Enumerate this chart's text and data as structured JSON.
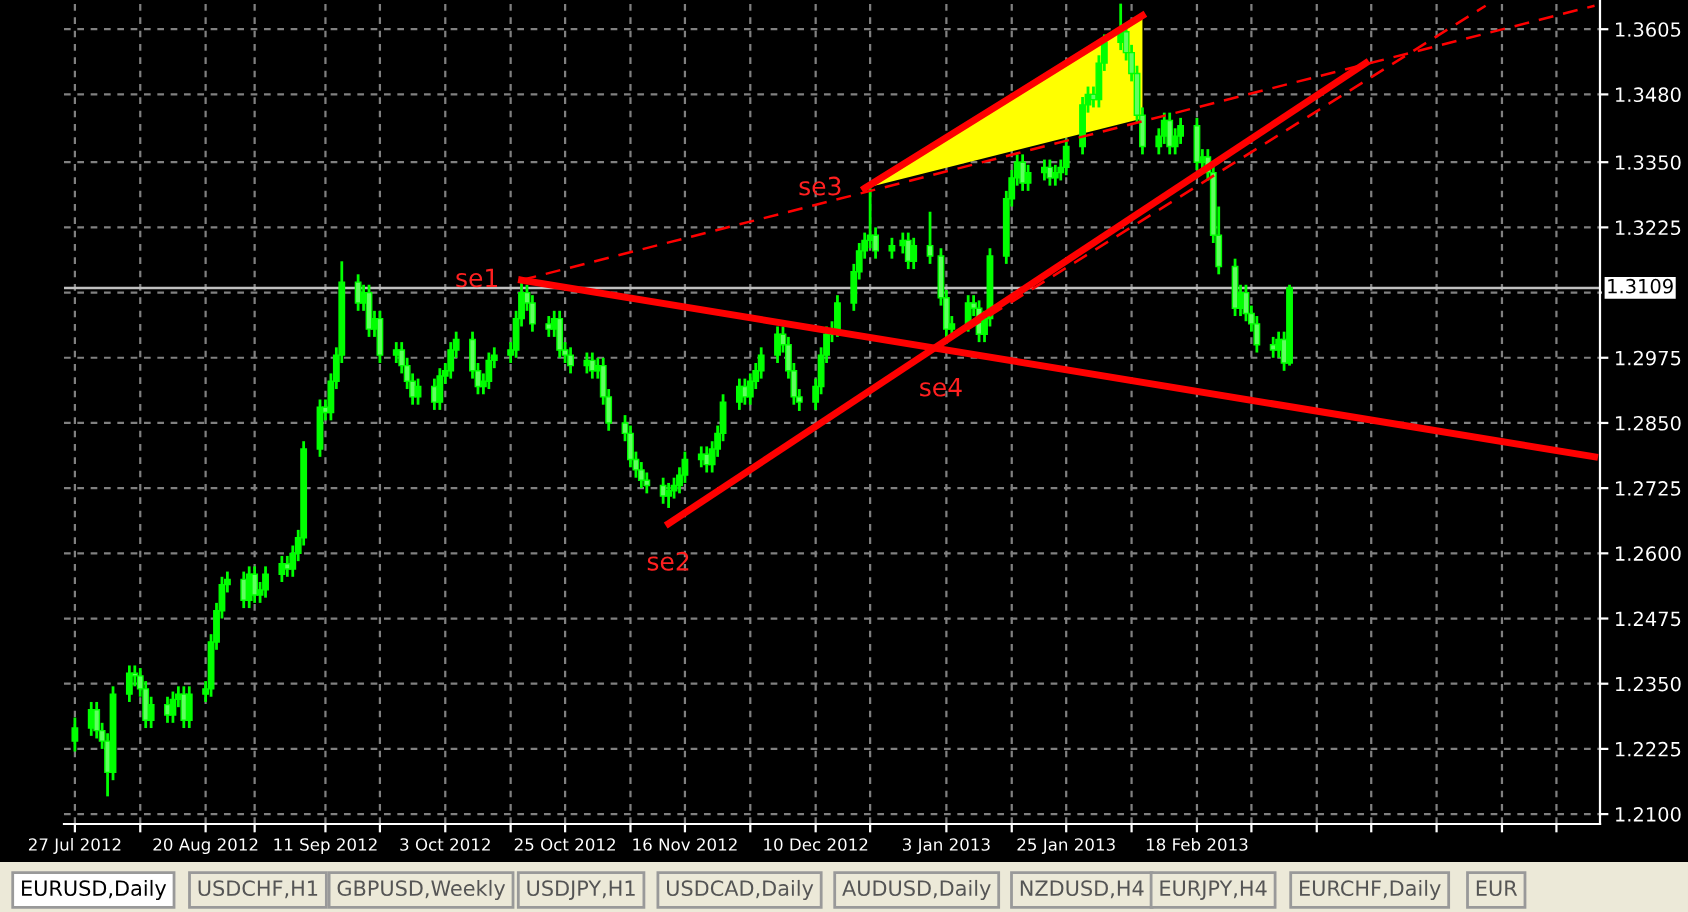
{
  "chart_data": {
    "type": "candlestick",
    "color": "#00ff00",
    "grid": true,
    "x": [
      "2012-07-27",
      "2012-07-30",
      "2012-07-31",
      "2012-08-01",
      "2012-08-02",
      "2012-08-03",
      "2012-08-06",
      "2012-08-07",
      "2012-08-08",
      "2012-08-09",
      "2012-08-10",
      "2012-08-13",
      "2012-08-14",
      "2012-08-15",
      "2012-08-16",
      "2012-08-17",
      "2012-08-20",
      "2012-08-21",
      "2012-08-22",
      "2012-08-23",
      "2012-08-24",
      "2012-08-27",
      "2012-08-28",
      "2012-08-29",
      "2012-08-30",
      "2012-08-31",
      "2012-09-03",
      "2012-09-04",
      "2012-09-05",
      "2012-09-06",
      "2012-09-07",
      "2012-09-10",
      "2012-09-11",
      "2012-09-12",
      "2012-09-13",
      "2012-09-14",
      "2012-09-17",
      "2012-09-18",
      "2012-09-19",
      "2012-09-20",
      "2012-09-21",
      "2012-09-24",
      "2012-09-25",
      "2012-09-26",
      "2012-09-27",
      "2012-09-28",
      "2012-10-01",
      "2012-10-02",
      "2012-10-03",
      "2012-10-04",
      "2012-10-05",
      "2012-10-08",
      "2012-10-09",
      "2012-10-10",
      "2012-10-11",
      "2012-10-12",
      "2012-10-15",
      "2012-10-16",
      "2012-10-17",
      "2012-10-18",
      "2012-10-19",
      "2012-10-22",
      "2012-10-23",
      "2012-10-24",
      "2012-10-25",
      "2012-10-26",
      "2012-10-29",
      "2012-10-30",
      "2012-10-31",
      "2012-11-01",
      "2012-11-02",
      "2012-11-05",
      "2012-11-06",
      "2012-11-07",
      "2012-11-08",
      "2012-11-09",
      "2012-11-12",
      "2012-11-13",
      "2012-11-14",
      "2012-11-15",
      "2012-11-16",
      "2012-11-19",
      "2012-11-20",
      "2012-11-21",
      "2012-11-22",
      "2012-11-23",
      "2012-11-26",
      "2012-11-27",
      "2012-11-28",
      "2012-11-29",
      "2012-11-30",
      "2012-12-03",
      "2012-12-04",
      "2012-12-05",
      "2012-12-06",
      "2012-12-07",
      "2012-12-10",
      "2012-12-11",
      "2012-12-12",
      "2012-12-13",
      "2012-12-14",
      "2012-12-17",
      "2012-12-18",
      "2012-12-19",
      "2012-12-20",
      "2012-12-21",
      "2012-12-24",
      "2012-12-26",
      "2012-12-27",
      "2012-12-28",
      "2012-12-31",
      "2013-01-02",
      "2013-01-03",
      "2013-01-04",
      "2013-01-07",
      "2013-01-08",
      "2013-01-09",
      "2013-01-10",
      "2013-01-11",
      "2013-01-14",
      "2013-01-15",
      "2013-01-16",
      "2013-01-17",
      "2013-01-18",
      "2013-01-21",
      "2013-01-22",
      "2013-01-23",
      "2013-01-24",
      "2013-01-25",
      "2013-01-28",
      "2013-01-29",
      "2013-01-30",
      "2013-01-31",
      "2013-02-01",
      "2013-02-04",
      "2013-02-05",
      "2013-02-06",
      "2013-02-07",
      "2013-02-08",
      "2013-02-11",
      "2013-02-12",
      "2013-02-13",
      "2013-02-14",
      "2013-02-15",
      "2013-02-18",
      "2013-02-19",
      "2013-02-20",
      "2013-02-21",
      "2013-02-22",
      "2013-02-25",
      "2013-02-26",
      "2013-02-27",
      "2013-02-28",
      "2013-03-01",
      "2013-03-04",
      "2013-03-05",
      "2013-03-06",
      "2013-03-07"
    ],
    "ohlc": [
      [
        1.224,
        1.2285,
        1.222,
        1.2265
      ],
      [
        1.2265,
        1.2315,
        1.225,
        1.23
      ],
      [
        1.23,
        1.2315,
        1.2245,
        1.226
      ],
      [
        1.226,
        1.2275,
        1.2225,
        1.224
      ],
      [
        1.224,
        1.2255,
        1.2134,
        1.218
      ],
      [
        1.218,
        1.2345,
        1.2165,
        1.233
      ],
      [
        1.233,
        1.2385,
        1.2315,
        1.237
      ],
      [
        1.237,
        1.2385,
        1.2345,
        1.2365
      ],
      [
        1.2365,
        1.238,
        1.2325,
        1.234
      ],
      [
        1.234,
        1.2355,
        1.2265,
        1.228
      ],
      [
        1.228,
        1.2325,
        1.2265,
        1.231
      ],
      [
        1.231,
        1.2325,
        1.2275,
        1.229
      ],
      [
        1.229,
        1.2335,
        1.2275,
        1.232
      ],
      [
        1.232,
        1.2345,
        1.2305,
        1.233
      ],
      [
        1.233,
        1.2345,
        1.2265,
        1.228
      ],
      [
        1.228,
        1.2345,
        1.2265,
        1.233
      ],
      [
        1.233,
        1.2355,
        1.2315,
        1.234
      ],
      [
        1.234,
        1.2445,
        1.2325,
        1.243
      ],
      [
        1.243,
        1.2505,
        1.2415,
        1.249
      ],
      [
        1.249,
        1.2555,
        1.2475,
        1.254
      ],
      [
        1.254,
        1.2565,
        1.2525,
        1.255
      ],
      [
        1.255,
        1.2565,
        1.2495,
        1.251
      ],
      [
        1.251,
        1.2575,
        1.2495,
        1.256
      ],
      [
        1.256,
        1.2575,
        1.2505,
        1.252
      ],
      [
        1.252,
        1.2545,
        1.2505,
        1.253
      ],
      [
        1.253,
        1.2575,
        1.2515,
        1.256
      ],
      [
        1.256,
        1.2595,
        1.2545,
        1.258
      ],
      [
        1.258,
        1.2595,
        1.2555,
        1.257
      ],
      [
        1.257,
        1.2615,
        1.2555,
        1.26
      ],
      [
        1.26,
        1.2645,
        1.2585,
        1.263
      ],
      [
        1.263,
        1.2815,
        1.2615,
        1.28
      ],
      [
        1.28,
        1.2895,
        1.2785,
        1.288
      ],
      [
        1.288,
        1.2895,
        1.2855,
        1.287
      ],
      [
        1.287,
        1.2945,
        1.2855,
        1.293
      ],
      [
        1.293,
        1.2995,
        1.2915,
        1.298
      ],
      [
        1.298,
        1.316,
        1.2965,
        1.312
      ],
      [
        1.312,
        1.3135,
        1.3065,
        1.308
      ],
      [
        1.308,
        1.3115,
        1.3065,
        1.31
      ],
      [
        1.31,
        1.3115,
        1.3015,
        1.303
      ],
      [
        1.303,
        1.3065,
        1.3015,
        1.305
      ],
      [
        1.305,
        1.3065,
        1.2965,
        1.298
      ],
      [
        1.298,
        1.3005,
        1.2965,
        1.299
      ],
      [
        1.299,
        1.3005,
        1.2945,
        1.296
      ],
      [
        1.296,
        1.2975,
        1.2915,
        1.293
      ],
      [
        1.293,
        1.2945,
        1.2885,
        1.29
      ],
      [
        1.29,
        1.2935,
        1.2885,
        1.292
      ],
      [
        1.292,
        1.2935,
        1.2875,
        1.289
      ],
      [
        1.289,
        1.2955,
        1.2875,
        1.294
      ],
      [
        1.294,
        1.2965,
        1.2925,
        1.295
      ],
      [
        1.295,
        1.3005,
        1.2935,
        1.299
      ],
      [
        1.299,
        1.3025,
        1.2975,
        1.301
      ],
      [
        1.301,
        1.3025,
        1.2935,
        1.295
      ],
      [
        1.295,
        1.2965,
        1.2905,
        1.292
      ],
      [
        1.292,
        1.2945,
        1.2905,
        1.293
      ],
      [
        1.293,
        1.2985,
        1.2915,
        1.297
      ],
      [
        1.297,
        1.2995,
        1.2955,
        1.298
      ],
      [
        1.298,
        1.3005,
        1.2965,
        1.299
      ],
      [
        1.299,
        1.3065,
        1.2975,
        1.305
      ],
      [
        1.305,
        1.3124,
        1.3035,
        1.31
      ],
      [
        1.31,
        1.3115,
        1.3065,
        1.308
      ],
      [
        1.308,
        1.3095,
        1.3025,
        1.304
      ],
      [
        1.304,
        1.3055,
        1.3015,
        1.303
      ],
      [
        1.303,
        1.3065,
        1.3015,
        1.305
      ],
      [
        1.305,
        1.3065,
        1.2975,
        1.299
      ],
      [
        1.299,
        1.3005,
        1.2965,
        1.298
      ],
      [
        1.298,
        1.2995,
        1.2945,
        1.296
      ],
      [
        1.296,
        1.2985,
        1.2945,
        1.297
      ],
      [
        1.297,
        1.2985,
        1.2935,
        1.295
      ],
      [
        1.295,
        1.2975,
        1.2935,
        1.296
      ],
      [
        1.296,
        1.2975,
        1.2885,
        1.29
      ],
      [
        1.29,
        1.2915,
        1.2835,
        1.285
      ],
      [
        1.285,
        1.2865,
        1.2815,
        1.283
      ],
      [
        1.283,
        1.2845,
        1.2765,
        1.278
      ],
      [
        1.278,
        1.2795,
        1.2745,
        1.276
      ],
      [
        1.276,
        1.2775,
        1.2725,
        1.274
      ],
      [
        1.274,
        1.2755,
        1.2715,
        1.273
      ],
      [
        1.273,
        1.2745,
        1.2695,
        1.271
      ],
      [
        1.271,
        1.2735,
        1.2687,
        1.272
      ],
      [
        1.272,
        1.2745,
        1.2705,
        1.273
      ],
      [
        1.273,
        1.2765,
        1.2715,
        1.275
      ],
      [
        1.275,
        1.2795,
        1.2735,
        1.278
      ],
      [
        1.278,
        1.2805,
        1.2765,
        1.279
      ],
      [
        1.279,
        1.2805,
        1.2755,
        1.277
      ],
      [
        1.277,
        1.2815,
        1.2755,
        1.28
      ],
      [
        1.28,
        1.2845,
        1.2785,
        1.283
      ],
      [
        1.283,
        1.2905,
        1.2815,
        1.289
      ],
      [
        1.289,
        1.2935,
        1.2875,
        1.292
      ],
      [
        1.292,
        1.2935,
        1.2885,
        1.29
      ],
      [
        1.29,
        1.2945,
        1.2885,
        1.293
      ],
      [
        1.293,
        1.2965,
        1.2915,
        1.295
      ],
      [
        1.295,
        1.2995,
        1.2935,
        1.298
      ],
      [
        1.298,
        1.3035,
        1.2965,
        1.302
      ],
      [
        1.302,
        1.3035,
        1.2985,
        1.3
      ],
      [
        1.3,
        1.3015,
        1.2935,
        1.295
      ],
      [
        1.295,
        1.2965,
        1.2885,
        1.29
      ],
      [
        1.29,
        1.2915,
        1.2873,
        1.289
      ],
      [
        1.289,
        1.2935,
        1.2875,
        1.292
      ],
      [
        1.292,
        1.2995,
        1.2905,
        1.298
      ],
      [
        1.298,
        1.3035,
        1.2965,
        1.302
      ],
      [
        1.302,
        1.3045,
        1.3005,
        1.303
      ],
      [
        1.303,
        1.3095,
        1.3015,
        1.308
      ],
      [
        1.308,
        1.3155,
        1.3065,
        1.314
      ],
      [
        1.314,
        1.3195,
        1.3125,
        1.318
      ],
      [
        1.318,
        1.3215,
        1.3165,
        1.32
      ],
      [
        1.32,
        1.33,
        1.3185,
        1.321
      ],
      [
        1.321,
        1.3225,
        1.3165,
        1.318
      ],
      [
        1.318,
        1.3205,
        1.3165,
        1.319
      ],
      [
        1.319,
        1.3215,
        1.3175,
        1.32
      ],
      [
        1.32,
        1.3215,
        1.3145,
        1.316
      ],
      [
        1.316,
        1.3205,
        1.3145,
        1.319
      ],
      [
        1.319,
        1.3255,
        1.3155,
        1.317
      ],
      [
        1.317,
        1.3185,
        1.3075,
        1.309
      ],
      [
        1.309,
        1.3105,
        1.3006,
        1.303
      ],
      [
        1.303,
        1.3055,
        1.3015,
        1.304
      ],
      [
        1.304,
        1.3095,
        1.3025,
        1.308
      ],
      [
        1.308,
        1.3095,
        1.3055,
        1.307
      ],
      [
        1.307,
        1.3085,
        1.3005,
        1.302
      ],
      [
        1.302,
        1.3065,
        1.3005,
        1.305
      ],
      [
        1.305,
        1.3185,
        1.3035,
        1.317
      ],
      [
        1.317,
        1.3295,
        1.3155,
        1.328
      ],
      [
        1.328,
        1.3335,
        1.3265,
        1.332
      ],
      [
        1.332,
        1.3365,
        1.3305,
        1.335
      ],
      [
        1.335,
        1.3365,
        1.3295,
        1.331
      ],
      [
        1.331,
        1.3345,
        1.3295,
        1.333
      ],
      [
        1.333,
        1.3355,
        1.3315,
        1.334
      ],
      [
        1.334,
        1.3355,
        1.3305,
        1.332
      ],
      [
        1.332,
        1.3345,
        1.3305,
        1.333
      ],
      [
        1.333,
        1.3355,
        1.3315,
        1.334
      ],
      [
        1.334,
        1.3395,
        1.3325,
        1.338
      ],
      [
        1.338,
        1.3475,
        1.3365,
        1.346
      ],
      [
        1.346,
        1.3495,
        1.3445,
        1.348
      ],
      [
        1.348,
        1.3495,
        1.3455,
        1.347
      ],
      [
        1.347,
        1.3555,
        1.3455,
        1.354
      ],
      [
        1.354,
        1.3595,
        1.3525,
        1.358
      ],
      [
        1.358,
        1.3654,
        1.3565,
        1.36
      ],
      [
        1.36,
        1.3615,
        1.3545,
        1.356
      ],
      [
        1.356,
        1.3575,
        1.3505,
        1.352
      ],
      [
        1.352,
        1.3535,
        1.3425,
        1.344
      ],
      [
        1.344,
        1.3455,
        1.3365,
        1.338
      ],
      [
        1.338,
        1.3415,
        1.3365,
        1.34
      ],
      [
        1.34,
        1.3445,
        1.3385,
        1.343
      ],
      [
        1.343,
        1.3445,
        1.3365,
        1.338
      ],
      [
        1.338,
        1.3415,
        1.3365,
        1.34
      ],
      [
        1.34,
        1.3435,
        1.3385,
        1.342
      ],
      [
        1.342,
        1.3435,
        1.3335,
        1.335
      ],
      [
        1.335,
        1.3375,
        1.3335,
        1.336
      ],
      [
        1.336,
        1.3375,
        1.3315,
        1.333
      ],
      [
        1.333,
        1.3345,
        1.3195,
        1.321
      ],
      [
        1.321,
        1.3265,
        1.3135,
        1.315
      ],
      [
        1.315,
        1.3165,
        1.3055,
        1.307
      ],
      [
        1.307,
        1.3115,
        1.3055,
        1.31
      ],
      [
        1.31,
        1.3115,
        1.3045,
        1.306
      ],
      [
        1.306,
        1.3075,
        1.3025,
        1.304
      ],
      [
        1.304,
        1.3055,
        1.2985,
        1.3
      ],
      [
        1.3,
        1.3015,
        1.2975,
        1.299
      ],
      [
        1.299,
        1.3025,
        1.2975,
        1.301
      ],
      [
        1.301,
        1.3025,
        1.295,
        1.2965
      ],
      [
        1.2965,
        1.3115,
        1.296,
        1.3109
      ]
    ],
    "series": [
      {
        "type": "line",
        "x": [
          "2012-12-19",
          "2013-02-08"
        ],
        "values": [
          1.33,
          1.3631
        ],
        "lower": [
          1.33,
          1.3434
        ],
        "upper": [
          1.33,
          1.3631
        ],
        "color": "#ff0000",
        "line_style": "solid"
      },
      {
        "type": "line",
        "x": [
          "2012-10-17",
          "2013-05-02"
        ],
        "values": [
          1.3124,
          1.2785
        ],
        "color": "#ff0000",
        "line_style": "solid"
      },
      {
        "type": "line",
        "x": [
          "2012-11-13",
          "2013-03-21"
        ],
        "values": [
          1.2657,
          1.354
        ],
        "color": "#ff0000",
        "line_style": "solid"
      },
      {
        "type": "line",
        "x": [
          "2012-10-17",
          "2013-05-02"
        ],
        "values": [
          1.3124,
          1.365
        ],
        "color": "#ff0000",
        "line_style": "dashed"
      },
      {
        "type": "line",
        "x": [
          "2013-01-07",
          "2013-04-12"
        ],
        "values": [
          1.303,
          1.365
        ],
        "color": "#ff0000",
        "line_style": "dashed"
      }
    ],
    "ref_lines": [
      {
        "axis": "y",
        "value": 1.3109,
        "label": "1.3109",
        "color": "#c0c0c0"
      }
    ],
    "annotations": [
      {
        "text": "se1",
        "x": "2012-10-17",
        "y": 1.3124
      },
      {
        "text": "se2",
        "x": "2012-11-13",
        "y": 1.2657
      },
      {
        "text": "se3",
        "x": "2012-12-19",
        "y": 1.33
      },
      {
        "text": "se4",
        "x": "2013-01-02",
        "y": 1.2991
      },
      "EURUSD,Daily",
      "USDCHF,H1",
      "GBPUSD,Weekly",
      "USDJPY,H1",
      "USDCAD,Daily",
      "AUDUSD,Daily",
      "NZDUSD,H4",
      "EURJPY,H4",
      "EURCHF,Daily",
      "EUR"
    ],
    "xlim": [
      "2012-07-25",
      "2013-05-03"
    ],
    "ylim": [
      1.2081,
      1.3661
    ],
    "xticks": [
      {
        "value": "2012-07-27",
        "label": "27 Jul 2012"
      },
      {
        "value": "2012-08-08",
        "label": null
      },
      {
        "value": "2012-08-20",
        "label": "20 Aug 2012"
      },
      {
        "value": "2012-08-29",
        "label": null
      },
      {
        "value": "2012-09-11",
        "label": "11 Sep 2012"
      },
      {
        "value": "2012-09-21",
        "label": null
      },
      {
        "value": "2012-10-03",
        "label": "3 Oct 2012"
      },
      {
        "value": "2012-10-15",
        "label": null
      },
      {
        "value": "2012-10-25",
        "label": "25 Oct 2012"
      },
      {
        "value": "2012-11-06",
        "label": null
      },
      {
        "value": "2012-11-16",
        "label": "16 Nov 2012"
      },
      {
        "value": "2012-11-28",
        "label": null
      },
      {
        "value": "2012-12-10",
        "label": "10 Dec 2012"
      },
      {
        "value": "2012-12-20",
        "label": null
      },
      {
        "value": "2013-01-03",
        "label": "3 Jan 2013"
      },
      {
        "value": "2013-01-15",
        "label": null
      },
      {
        "value": "2013-01-25",
        "label": "25 Jan 2013"
      },
      {
        "value": "2013-02-06",
        "label": null
      },
      {
        "value": "2013-02-18",
        "label": "18 Feb 2013"
      },
      {
        "value": "2013-02-28",
        "label": null
      },
      {
        "value": "2013-03-12",
        "label": null
      },
      {
        "value": "2013-03-22",
        "label": null
      },
      {
        "value": "2013-04-03",
        "label": null
      },
      {
        "value": "2013-04-15",
        "label": null
      },
      {
        "value": "2013-04-25",
        "label": null
      }
    ],
    "yticks": [
      {
        "value": 1.21,
        "label": "1.2100"
      },
      {
        "value": 1.2225,
        "label": "1.2225"
      },
      {
        "value": 1.235,
        "label": "1.2350"
      },
      {
        "value": 1.2475,
        "label": "1.2475"
      },
      {
        "value": 1.26,
        "label": "1.2600"
      },
      {
        "value": 1.2725,
        "label": "1.2725"
      },
      {
        "value": 1.285,
        "label": "1.2850"
      },
      {
        "value": 1.2975,
        "label": "1.2975"
      },
      {
        "value": 1.31,
        "label": null
      },
      {
        "value": 1.3225,
        "label": "1.3225"
      },
      {
        "value": 1.335,
        "label": "1.3350"
      },
      {
        "value": 1.348,
        "label": "1.3480"
      },
      {
        "value": 1.3605,
        "label": "1.3605"
      }
    ]
  }
}
